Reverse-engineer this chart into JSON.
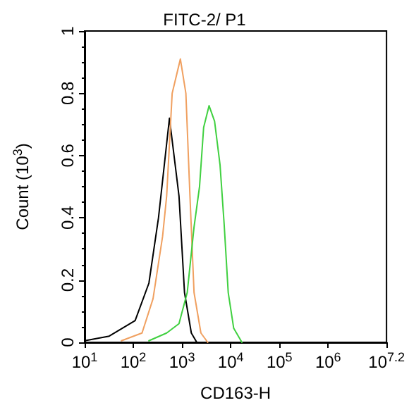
{
  "chart_data": {
    "type": "line",
    "title": "FITC-2/ P1",
    "xlabel": "CD163-H",
    "ylabel": "Count (10$^{3}$)",
    "log": "x",
    "xlim": [
      10,
      15848931.92
    ],
    "xticks": [
      {
        "value": 10,
        "label": "10$^{1}$"
      },
      {
        "value": 100,
        "label": "10$^{2}$"
      },
      {
        "value": 1000,
        "label": "10$^{3}$"
      },
      {
        "value": 10000,
        "label": "10$^{4}$"
      },
      {
        "value": 100000,
        "label": "10$^{5}$"
      },
      {
        "value": 1000000,
        "label": "10$^{6}$"
      },
      {
        "value": 15848931.92,
        "label": "10$^{7.2}$"
      }
    ],
    "ylim": [
      0,
      1
    ],
    "yticks": [
      0,
      0.2,
      0.4,
      0.6,
      0.8,
      1
    ],
    "grid": false,
    "marker": "none",
    "line_style": "solid",
    "series": [
      {
        "color": "#000000",
        "x": [
          10,
          32,
          109,
          209,
          329,
          552,
          867,
          1125,
          1553,
          2011
        ],
        "values": [
          0.005,
          0.02,
          0.07,
          0.19,
          0.4,
          0.72,
          0.47,
          0.16,
          0.03,
          0
        ]
      },
      {
        "color": "#f0a060",
        "x": [
          57,
          151,
          254,
          399,
          484,
          628,
          925,
          1200,
          1456,
          1766,
          2443,
          3373
        ],
        "values": [
          0.005,
          0.03,
          0.14,
          0.34,
          0.47,
          0.8,
          0.91,
          0.8,
          0.47,
          0.16,
          0.03,
          0
        ]
      },
      {
        "color": "#40d040",
        "x": [
          209,
          484,
          867,
          1280,
          1766,
          2290,
          2780,
          3597,
          4663,
          6040,
          7330,
          8892,
          11530,
          16980
        ],
        "values": [
          0.005,
          0.03,
          0.06,
          0.16,
          0.37,
          0.5,
          0.69,
          0.76,
          0.71,
          0.57,
          0.38,
          0.16,
          0.045,
          0
        ]
      }
    ]
  }
}
